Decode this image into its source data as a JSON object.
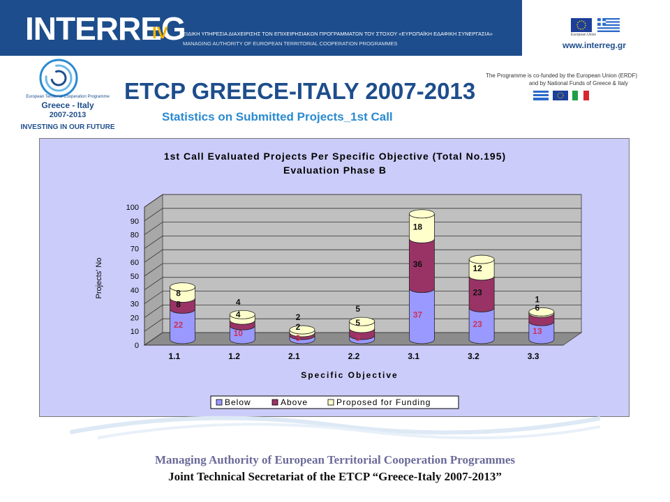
{
  "banner": {
    "logo_text": "INTERREG",
    "logo_suffix": "IV",
    "line1": "ΕΙΔΙΚΗ ΥΠΗΡΕΣΙΑ ΔΙΑΧΕΙΡΙΣΗΣ ΤΩΝ ΕΠΙΧΕΙΡΗΣΙΑΚΩΝ ΠΡΟΓΡΑΜΜΑΤΩΝ ΤΟΥ ΣΤΟΧΟΥ «ΕΥΡΩΠΑΪΚΗ ΕΔΑΦΙΚΗ ΣΥΝΕΡΓΑΣΙΑ»",
    "line2": "MANAGING AUTHORITY OF EUROPEAN TERRITORIAL COOPERATION PROGRAMMES",
    "eu_caption": "European Union",
    "url": "www.interreg.gr"
  },
  "program_logo": {
    "name": "European Territorial Cooperation Programme",
    "regions": "Greece - Italy",
    "years": "2007-2013",
    "slogan": "INVESTING IN OUR FUTURE"
  },
  "header": {
    "title": "ETCP GREECE-ITALY 2007-2013",
    "subtitle": "Statistics on Submitted Projects_1st Call",
    "cofund_line1": "The Programme is co-funded by the European Union (ERDF)",
    "cofund_line2": "and by National Funds of Greece & Italy"
  },
  "colors": {
    "brand_blue": "#1d4d8c",
    "subtitle_blue": "#2a8ad0",
    "chart_bg": "#ccccfa",
    "plot_bg": "#c0c0c0",
    "below": "#9999ff",
    "above": "#993366",
    "proposed": "#ffffcc"
  },
  "chart_data": {
    "type": "bar",
    "stacked": true,
    "title": "1st Call Evaluated Projects Per Specific Objective (Total No.195)",
    "subtitle": "Evaluation Phase B",
    "xlabel": "Specific Objective",
    "ylabel": "Projects' No",
    "ylim": [
      0,
      100
    ],
    "yticks": [
      0,
      10,
      20,
      30,
      40,
      50,
      60,
      70,
      80,
      90,
      100
    ],
    "grid": true,
    "legend_position": "bottom",
    "categories": [
      "1.1",
      "1.2",
      "2.1",
      "2.2",
      "3.1",
      "3.2",
      "3.3"
    ],
    "series": [
      {
        "name": "Below",
        "values": [
          22,
          10,
          3,
          3,
          37,
          23,
          13
        ],
        "labels": [
          "22",
          "10",
          "3",
          "3",
          "37",
          "23",
          "13"
        ]
      },
      {
        "name": "Above",
        "values": [
          8,
          4,
          2,
          5,
          36,
          23,
          6
        ],
        "labels": [
          "8",
          "4",
          "2",
          "5",
          "36",
          "23",
          "6"
        ]
      },
      {
        "name": "Proposed for Funding",
        "values": [
          8,
          4,
          2,
          5,
          18,
          12,
          1
        ],
        "labels": [
          "8",
          "4",
          "2",
          "5",
          "18",
          "12",
          "1"
        ]
      }
    ]
  },
  "footer": {
    "line1": "Managing Authority of European Territorial Cooperation Programmes",
    "line2": "Joint Technical Secretariat of the ETCP “Greece-Italy 2007-2013”"
  }
}
